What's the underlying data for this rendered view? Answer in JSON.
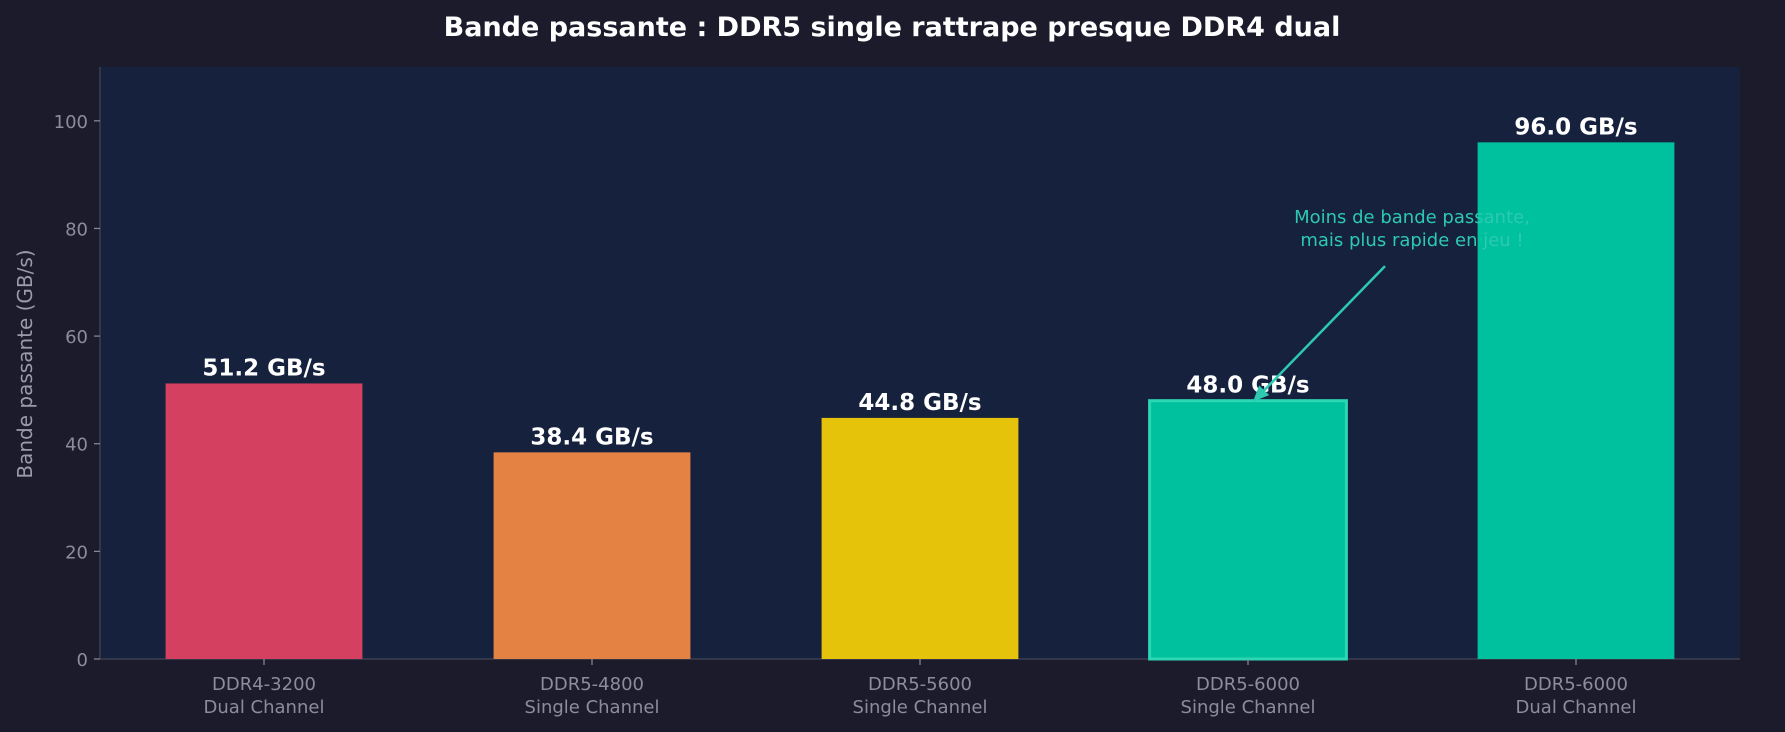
{
  "chart_data": {
    "type": "bar",
    "title": "Bande passante : DDR5 single rattrape presque DDR4 dual",
    "ylabel": "Bande passante (GB/s)",
    "xlabel": "",
    "ylim": [
      0,
      110
    ],
    "yticks": [
      0,
      20,
      40,
      60,
      80,
      100
    ],
    "grid": false,
    "categories": [
      [
        "DDR4-3200",
        "Dual Channel"
      ],
      [
        "DDR5-4800",
        "Single Channel"
      ],
      [
        "DDR5-5600",
        "Single Channel"
      ],
      [
        "DDR5-6000",
        "Single Channel"
      ],
      [
        "DDR5-6000",
        "Dual Channel"
      ]
    ],
    "values": [
      51.2,
      38.4,
      44.8,
      48.0,
      96.0
    ],
    "value_labels": [
      "51.2 GB/s",
      "38.4 GB/s",
      "44.8 GB/s",
      "48.0 GB/s",
      "96.0 GB/s"
    ],
    "colors": [
      "#d44160",
      "#e48243",
      "#e5c30b",
      "#00c19d",
      "#00c19d"
    ],
    "highlighted_index": 3,
    "highlight_edge_color": "#2dd6b4",
    "annotation": {
      "lines": [
        "Moins de bande passante,",
        "mais plus rapide en jeu !"
      ],
      "points_to_index": 3,
      "color": "#2dc9b0"
    }
  },
  "colors": {
    "background": "#1b1b2c",
    "plot_background": "#16213d",
    "axis": "#3c4052",
    "tick_text": "#8c8c9a",
    "title": "#ffffff",
    "value_label": "#ffffff"
  }
}
